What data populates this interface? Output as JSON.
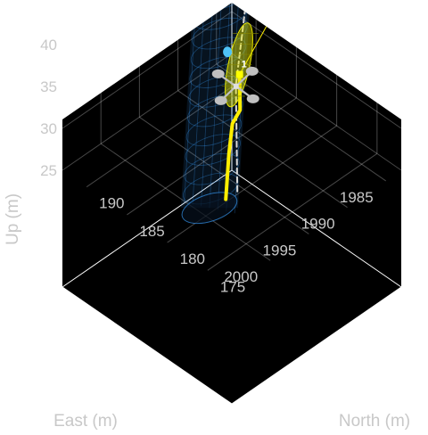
{
  "chart_data": {
    "type": "3d-scene",
    "axes": {
      "east": {
        "label": "East (m)",
        "range": [
          1983,
          2005
        ],
        "ticks": [
          {
            "value": 1985,
            "label": "1985"
          },
          {
            "value": 1990,
            "label": "1990"
          },
          {
            "value": 1995,
            "label": "1995"
          },
          {
            "value": 2000,
            "label": "2000"
          }
        ]
      },
      "north": {
        "label": "North (m)",
        "range": [
          172,
          193
        ],
        "ticks": [
          {
            "value": 175,
            "label": "175"
          },
          {
            "value": 180,
            "label": "180"
          },
          {
            "value": 185,
            "label": "185"
          },
          {
            "value": 190,
            "label": "190"
          }
        ]
      },
      "up": {
        "label": "Up (m)",
        "range": [
          25,
          45
        ],
        "ticks": [
          {
            "value": 25,
            "label": "25"
          },
          {
            "value": 30,
            "label": "30"
          },
          {
            "value": 35,
            "label": "35"
          },
          {
            "value": 40,
            "label": "40"
          }
        ]
      }
    },
    "grid": true,
    "background": "#000000",
    "series": [
      {
        "kind": "reference-path",
        "style": "dashed",
        "color": "#d9d9d9",
        "points": [
          {
            "east": 1998,
            "north": 178,
            "up": 28
          },
          {
            "east": 1996,
            "north": 180,
            "up": 32
          },
          {
            "east": 1994,
            "north": 182,
            "up": 35.5
          },
          {
            "east": 1991,
            "north": 184,
            "up": 39
          },
          {
            "east": 1988,
            "north": 186,
            "up": 43
          },
          {
            "east": 1985,
            "north": 187.5,
            "up": 46
          }
        ]
      },
      {
        "kind": "flown-path",
        "style": "solid",
        "color": "#ffee00",
        "points": [
          {
            "east": 1999.5,
            "north": 178,
            "up": 28
          },
          {
            "east": 1997,
            "north": 180,
            "up": 30.5
          },
          {
            "east": 1995.5,
            "north": 181,
            "up": 32.5
          },
          {
            "east": 1994.5,
            "north": 181,
            "up": 33.5
          },
          {
            "east": 1993,
            "north": 182.5,
            "up": 35.8
          }
        ]
      },
      {
        "kind": "look-ahead-line",
        "style": "solid",
        "color": "#ffee00",
        "points": [
          {
            "east": 1993,
            "north": 182.5,
            "up": 35.8
          },
          {
            "east": 1980.5,
            "north": 187.5,
            "up": 36.5
          }
        ]
      }
    ],
    "objects": [
      {
        "kind": "uav",
        "color": "#c0c0c0",
        "position": {
          "east": 1994.5,
          "north": 181.5,
          "up": 36
        }
      },
      {
        "kind": "waypoint",
        "label": "1",
        "color": "#ffff00",
        "position": {
          "east": 1993,
          "north": 182.5,
          "up": 35.8
        }
      },
      {
        "kind": "waypoint-marker",
        "color": "#4fc3f7",
        "position": {
          "east": 1993,
          "north": 184,
          "up": 37.5
        }
      },
      {
        "kind": "transition-ellipsoid",
        "color": "#e8e800",
        "center": {
          "east": 1991.5,
          "north": 184,
          "up": 35
        }
      },
      {
        "kind": "safety-cylinder",
        "color": "#3aa0ff",
        "bottom": {
          "east": 1999,
          "north": 180.5,
          "up": 25
        },
        "top": {
          "east": 1992,
          "north": 185.5,
          "up": 45
        }
      }
    ]
  }
}
